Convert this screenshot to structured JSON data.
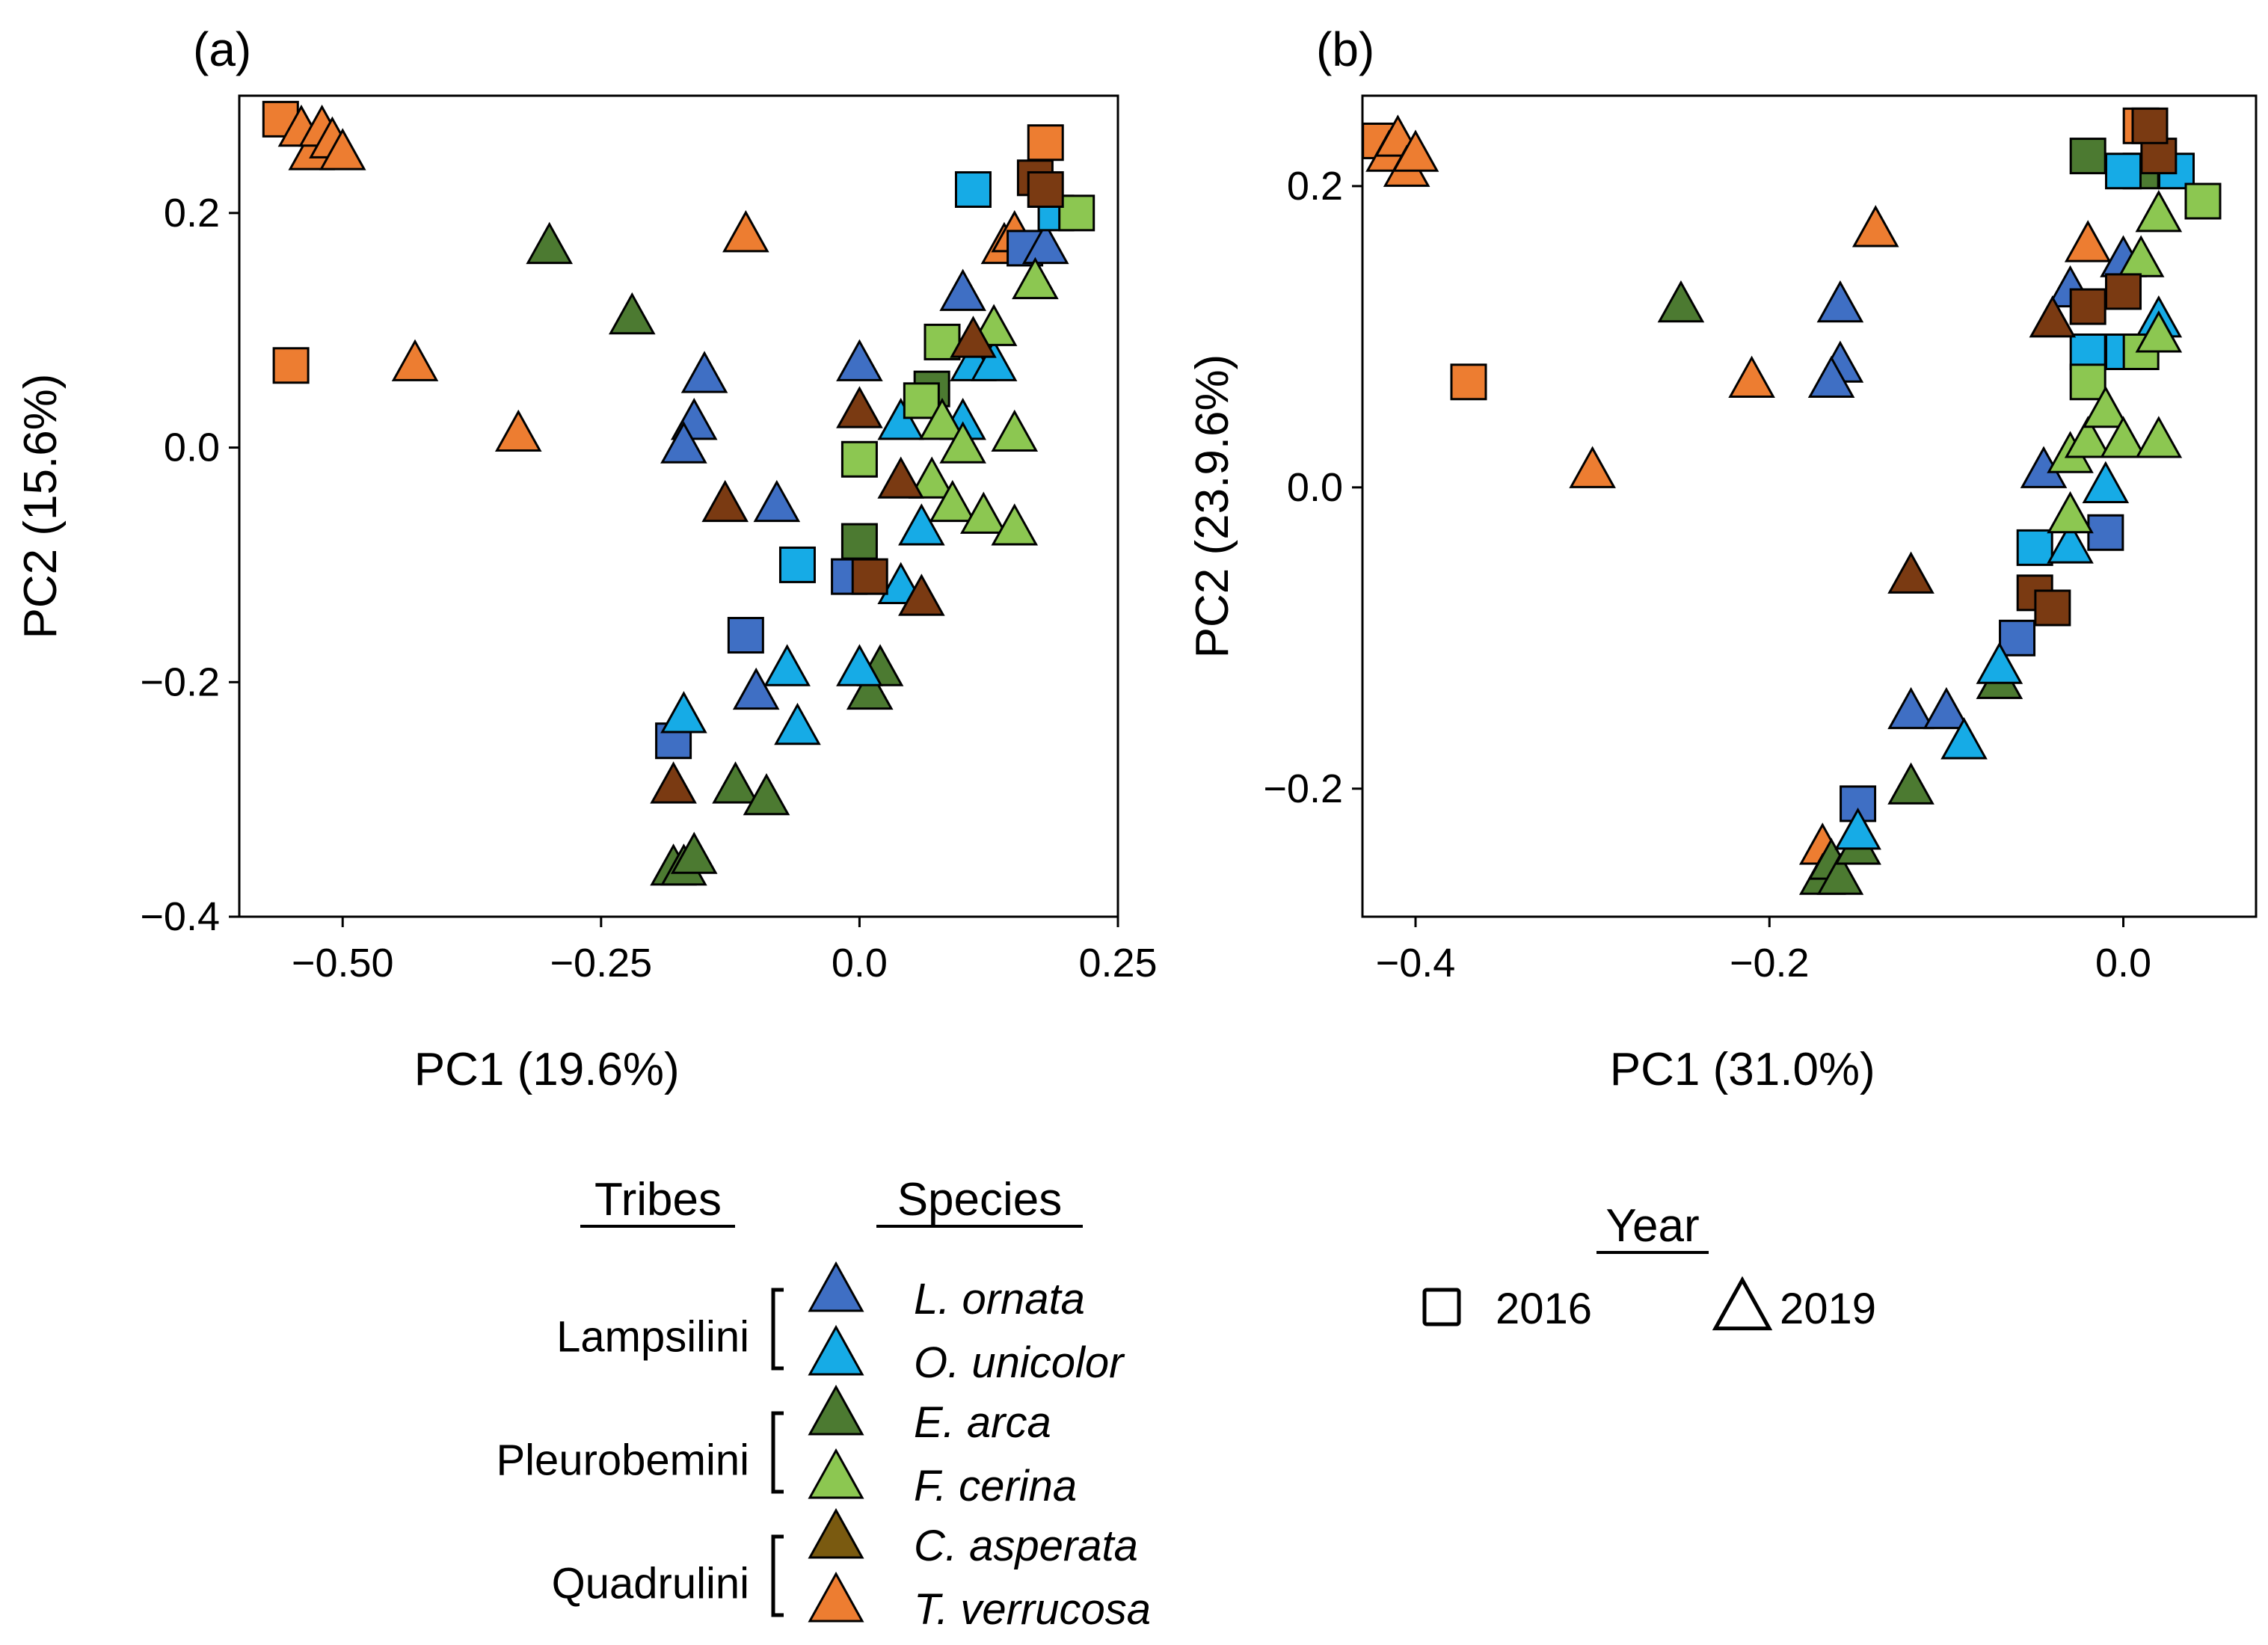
{
  "chart_data": [
    {
      "type": "scatter",
      "panel_label": "(a)",
      "xlabel": "PC1 (19.6%)",
      "ylabel": "PC2 (15.6%)",
      "xlim": [
        -0.6,
        0.25
      ],
      "ylim": [
        -0.4,
        0.3
      ],
      "xticks": [
        -0.5,
        -0.25,
        0.0,
        0.25
      ],
      "xtick_labels": [
        "−0.50",
        "−0.25",
        "0.0",
        "0.25"
      ],
      "yticks": [
        -0.4,
        -0.2,
        0.0,
        0.2
      ],
      "ytick_labels": [
        "−0.4",
        "−0.2",
        "0.0",
        "0.2"
      ],
      "points": [
        {
          "x": -0.56,
          "y": 0.28,
          "species": "T. verrucosa",
          "year": "2016"
        },
        {
          "x": -0.55,
          "y": 0.07,
          "species": "T. verrucosa",
          "year": "2016"
        },
        {
          "x": -0.54,
          "y": 0.27,
          "species": "T. verrucosa",
          "year": "2019"
        },
        {
          "x": -0.53,
          "y": 0.25,
          "species": "T. verrucosa",
          "year": "2019"
        },
        {
          "x": -0.52,
          "y": 0.27,
          "species": "T. verrucosa",
          "year": "2019"
        },
        {
          "x": -0.51,
          "y": 0.26,
          "species": "T. verrucosa",
          "year": "2019"
        },
        {
          "x": -0.5,
          "y": 0.25,
          "species": "T. verrucosa",
          "year": "2019"
        },
        {
          "x": -0.43,
          "y": 0.07,
          "species": "T. verrucosa",
          "year": "2019"
        },
        {
          "x": -0.33,
          "y": 0.01,
          "species": "T. verrucosa",
          "year": "2019"
        },
        {
          "x": -0.11,
          "y": 0.18,
          "species": "T. verrucosa",
          "year": "2019"
        },
        {
          "x": 0.14,
          "y": 0.17,
          "species": "T. verrucosa",
          "year": "2019"
        },
        {
          "x": 0.15,
          "y": 0.18,
          "species": "T. verrucosa",
          "year": "2019"
        },
        {
          "x": 0.18,
          "y": 0.26,
          "species": "T. verrucosa",
          "year": "2016"
        },
        {
          "x": -0.3,
          "y": 0.17,
          "species": "E. arca",
          "year": "2019"
        },
        {
          "x": -0.22,
          "y": 0.11,
          "species": "E. arca",
          "year": "2019"
        },
        {
          "x": -0.12,
          "y": -0.29,
          "species": "E. arca",
          "year": "2019"
        },
        {
          "x": -0.09,
          "y": -0.3,
          "species": "E. arca",
          "year": "2019"
        },
        {
          "x": -0.18,
          "y": -0.36,
          "species": "E. arca",
          "year": "2019"
        },
        {
          "x": -0.17,
          "y": -0.36,
          "species": "E. arca",
          "year": "2019"
        },
        {
          "x": -0.16,
          "y": -0.35,
          "species": "E. arca",
          "year": "2019"
        },
        {
          "x": 0.02,
          "y": -0.19,
          "species": "E. arca",
          "year": "2019"
        },
        {
          "x": 0.01,
          "y": -0.21,
          "species": "E. arca",
          "year": "2019"
        },
        {
          "x": 0.0,
          "y": -0.08,
          "species": "E. arca",
          "year": "2016"
        },
        {
          "x": 0.07,
          "y": 0.05,
          "species": "E. arca",
          "year": "2016"
        },
        {
          "x": -0.15,
          "y": 0.06,
          "species": "L. ornata",
          "year": "2019"
        },
        {
          "x": -0.16,
          "y": 0.02,
          "species": "L. ornata",
          "year": "2019"
        },
        {
          "x": -0.17,
          "y": 0.0,
          "species": "L. ornata",
          "year": "2019"
        },
        {
          "x": -0.08,
          "y": -0.05,
          "species": "L. ornata",
          "year": "2019"
        },
        {
          "x": -0.1,
          "y": -0.21,
          "species": "L. ornata",
          "year": "2019"
        },
        {
          "x": -0.11,
          "y": -0.16,
          "species": "L. ornata",
          "year": "2016"
        },
        {
          "x": -0.18,
          "y": -0.25,
          "species": "L. ornata",
          "year": "2016"
        },
        {
          "x": -0.01,
          "y": -0.11,
          "species": "L. ornata",
          "year": "2016"
        },
        {
          "x": 0.0,
          "y": 0.07,
          "species": "L. ornata",
          "year": "2019"
        },
        {
          "x": 0.1,
          "y": 0.13,
          "species": "L. ornata",
          "year": "2019"
        },
        {
          "x": 0.16,
          "y": 0.17,
          "species": "L. ornata",
          "year": "2016"
        },
        {
          "x": 0.18,
          "y": 0.17,
          "species": "L. ornata",
          "year": "2019"
        },
        {
          "x": -0.17,
          "y": -0.23,
          "species": "O. unicolor",
          "year": "2019"
        },
        {
          "x": -0.07,
          "y": -0.19,
          "species": "O. unicolor",
          "year": "2019"
        },
        {
          "x": -0.06,
          "y": -0.24,
          "species": "O. unicolor",
          "year": "2019"
        },
        {
          "x": -0.06,
          "y": -0.1,
          "species": "O. unicolor",
          "year": "2016"
        },
        {
          "x": 0.0,
          "y": -0.19,
          "species": "O. unicolor",
          "year": "2019"
        },
        {
          "x": 0.04,
          "y": 0.02,
          "species": "O. unicolor",
          "year": "2019"
        },
        {
          "x": 0.04,
          "y": -0.12,
          "species": "O. unicolor",
          "year": "2019"
        },
        {
          "x": 0.06,
          "y": -0.07,
          "species": "O. unicolor",
          "year": "2019"
        },
        {
          "x": 0.1,
          "y": 0.02,
          "species": "O. unicolor",
          "year": "2019"
        },
        {
          "x": 0.11,
          "y": 0.07,
          "species": "O. unicolor",
          "year": "2019"
        },
        {
          "x": 0.13,
          "y": 0.07,
          "species": "O. unicolor",
          "year": "2019"
        },
        {
          "x": 0.11,
          "y": 0.22,
          "species": "O. unicolor",
          "year": "2016"
        },
        {
          "x": 0.19,
          "y": 0.2,
          "species": "O. unicolor",
          "year": "2016"
        },
        {
          "x": 0.0,
          "y": -0.01,
          "species": "F. cerina",
          "year": "2016"
        },
        {
          "x": 0.06,
          "y": 0.04,
          "species": "F. cerina",
          "year": "2016"
        },
        {
          "x": 0.08,
          "y": 0.09,
          "species": "F. cerina",
          "year": "2016"
        },
        {
          "x": 0.08,
          "y": 0.02,
          "species": "F. cerina",
          "year": "2019"
        },
        {
          "x": 0.07,
          "y": -0.03,
          "species": "F. cerina",
          "year": "2019"
        },
        {
          "x": 0.09,
          "y": -0.05,
          "species": "F. cerina",
          "year": "2019"
        },
        {
          "x": 0.1,
          "y": 0.0,
          "species": "F. cerina",
          "year": "2019"
        },
        {
          "x": 0.12,
          "y": -0.06,
          "species": "F. cerina",
          "year": "2019"
        },
        {
          "x": 0.13,
          "y": 0.1,
          "species": "F. cerina",
          "year": "2019"
        },
        {
          "x": 0.15,
          "y": -0.07,
          "species": "F. cerina",
          "year": "2019"
        },
        {
          "x": 0.15,
          "y": 0.01,
          "species": "F. cerina",
          "year": "2019"
        },
        {
          "x": 0.17,
          "y": 0.14,
          "species": "F. cerina",
          "year": "2019"
        },
        {
          "x": 0.21,
          "y": 0.2,
          "species": "F. cerina",
          "year": "2016"
        },
        {
          "x": -0.13,
          "y": -0.05,
          "species": "C. asperata",
          "year": "2019"
        },
        {
          "x": -0.18,
          "y": -0.29,
          "species": "C. asperata",
          "year": "2019"
        },
        {
          "x": 0.0,
          "y": 0.03,
          "species": "C. asperata",
          "year": "2019"
        },
        {
          "x": 0.01,
          "y": -0.11,
          "species": "C. asperata",
          "year": "2016"
        },
        {
          "x": 0.04,
          "y": -0.03,
          "species": "C. asperata",
          "year": "2019"
        },
        {
          "x": 0.06,
          "y": -0.13,
          "species": "C. asperata",
          "year": "2019"
        },
        {
          "x": 0.11,
          "y": 0.09,
          "species": "C. asperata",
          "year": "2019"
        },
        {
          "x": 0.17,
          "y": 0.23,
          "species": "C. asperata",
          "year": "2016"
        },
        {
          "x": 0.18,
          "y": 0.22,
          "species": "C. asperata",
          "year": "2016"
        }
      ]
    },
    {
      "type": "scatter",
      "panel_label": "(b)",
      "xlabel": "PC1 (31.0%)",
      "ylabel": "PC2 (23.9.6%)",
      "xlim": [
        -0.43,
        0.075
      ],
      "ylim": [
        -0.285,
        0.26
      ],
      "xticks": [
        -0.4,
        -0.2,
        0.0
      ],
      "xtick_labels": [
        "−0.4",
        "−0.2",
        "0.0"
      ],
      "yticks": [
        -0.2,
        0.0,
        0.2
      ],
      "ytick_labels": [
        "−0.2",
        "0.0",
        "0.2"
      ],
      "points": [
        {
          "x": -0.42,
          "y": 0.23,
          "species": "T. verrucosa",
          "year": "2016"
        },
        {
          "x": -0.415,
          "y": 0.22,
          "species": "T. verrucosa",
          "year": "2019"
        },
        {
          "x": -0.41,
          "y": 0.23,
          "species": "T. verrucosa",
          "year": "2019"
        },
        {
          "x": -0.405,
          "y": 0.21,
          "species": "T. verrucosa",
          "year": "2019"
        },
        {
          "x": -0.4,
          "y": 0.22,
          "species": "T. verrucosa",
          "year": "2019"
        },
        {
          "x": -0.37,
          "y": 0.07,
          "species": "T. verrucosa",
          "year": "2016"
        },
        {
          "x": -0.3,
          "y": 0.01,
          "species": "T. verrucosa",
          "year": "2019"
        },
        {
          "x": -0.21,
          "y": 0.07,
          "species": "T. verrucosa",
          "year": "2019"
        },
        {
          "x": -0.14,
          "y": 0.17,
          "species": "T. verrucosa",
          "year": "2019"
        },
        {
          "x": -0.02,
          "y": 0.16,
          "species": "T. verrucosa",
          "year": "2019"
        },
        {
          "x": -0.17,
          "y": -0.24,
          "species": "T. verrucosa",
          "year": "2019"
        },
        {
          "x": 0.01,
          "y": 0.24,
          "species": "T. verrucosa",
          "year": "2016"
        },
        {
          "x": -0.25,
          "y": 0.12,
          "species": "E. arca",
          "year": "2019"
        },
        {
          "x": -0.12,
          "y": -0.2,
          "species": "E. arca",
          "year": "2019"
        },
        {
          "x": -0.17,
          "y": -0.26,
          "species": "E. arca",
          "year": "2019"
        },
        {
          "x": -0.165,
          "y": -0.25,
          "species": "E. arca",
          "year": "2019"
        },
        {
          "x": -0.16,
          "y": -0.26,
          "species": "E. arca",
          "year": "2019"
        },
        {
          "x": -0.15,
          "y": -0.24,
          "species": "E. arca",
          "year": "2019"
        },
        {
          "x": -0.07,
          "y": -0.13,
          "species": "E. arca",
          "year": "2019"
        },
        {
          "x": -0.02,
          "y": 0.22,
          "species": "E. arca",
          "year": "2016"
        },
        {
          "x": 0.01,
          "y": 0.21,
          "species": "E. arca",
          "year": "2016"
        },
        {
          "x": -0.16,
          "y": 0.12,
          "species": "L. ornata",
          "year": "2019"
        },
        {
          "x": -0.16,
          "y": 0.08,
          "species": "L. ornata",
          "year": "2019"
        },
        {
          "x": -0.165,
          "y": 0.07,
          "species": "L. ornata",
          "year": "2019"
        },
        {
          "x": -0.12,
          "y": -0.15,
          "species": "L. ornata",
          "year": "2019"
        },
        {
          "x": -0.1,
          "y": -0.15,
          "species": "L. ornata",
          "year": "2019"
        },
        {
          "x": -0.06,
          "y": -0.1,
          "species": "L. ornata",
          "year": "2016"
        },
        {
          "x": -0.15,
          "y": -0.21,
          "species": "L. ornata",
          "year": "2016"
        },
        {
          "x": -0.045,
          "y": 0.01,
          "species": "L. ornata",
          "year": "2019"
        },
        {
          "x": -0.03,
          "y": 0.13,
          "species": "L. ornata",
          "year": "2019"
        },
        {
          "x": 0.0,
          "y": 0.15,
          "species": "L. ornata",
          "year": "2019"
        },
        {
          "x": -0.01,
          "y": -0.03,
          "species": "L. ornata",
          "year": "2016"
        },
        {
          "x": -0.15,
          "y": -0.23,
          "species": "O. unicolor",
          "year": "2019"
        },
        {
          "x": -0.09,
          "y": -0.17,
          "species": "O. unicolor",
          "year": "2019"
        },
        {
          "x": -0.07,
          "y": -0.12,
          "species": "O. unicolor",
          "year": "2019"
        },
        {
          "x": -0.05,
          "y": -0.04,
          "species": "O. unicolor",
          "year": "2016"
        },
        {
          "x": -0.03,
          "y": -0.04,
          "species": "O. unicolor",
          "year": "2019"
        },
        {
          "x": -0.02,
          "y": 0.09,
          "species": "O. unicolor",
          "year": "2016"
        },
        {
          "x": 0.0,
          "y": 0.09,
          "species": "O. unicolor",
          "year": "2016"
        },
        {
          "x": 0.0,
          "y": 0.21,
          "species": "O. unicolor",
          "year": "2016"
        },
        {
          "x": 0.03,
          "y": 0.21,
          "species": "O. unicolor",
          "year": "2016"
        },
        {
          "x": 0.02,
          "y": 0.11,
          "species": "O. unicolor",
          "year": "2019"
        },
        {
          "x": -0.01,
          "y": 0.0,
          "species": "O. unicolor",
          "year": "2019"
        },
        {
          "x": -0.03,
          "y": -0.02,
          "species": "F. cerina",
          "year": "2019"
        },
        {
          "x": -0.03,
          "y": 0.02,
          "species": "F. cerina",
          "year": "2019"
        },
        {
          "x": -0.02,
          "y": 0.07,
          "species": "F. cerina",
          "year": "2016"
        },
        {
          "x": -0.02,
          "y": 0.03,
          "species": "F. cerina",
          "year": "2019"
        },
        {
          "x": -0.01,
          "y": 0.05,
          "species": "F. cerina",
          "year": "2019"
        },
        {
          "x": 0.0,
          "y": 0.03,
          "species": "F. cerina",
          "year": "2019"
        },
        {
          "x": 0.01,
          "y": 0.09,
          "species": "F. cerina",
          "year": "2016"
        },
        {
          "x": 0.01,
          "y": 0.15,
          "species": "F. cerina",
          "year": "2019"
        },
        {
          "x": 0.02,
          "y": 0.03,
          "species": "F. cerina",
          "year": "2019"
        },
        {
          "x": 0.02,
          "y": 0.18,
          "species": "F. cerina",
          "year": "2019"
        },
        {
          "x": 0.045,
          "y": 0.19,
          "species": "F. cerina",
          "year": "2016"
        },
        {
          "x": 0.02,
          "y": 0.1,
          "species": "F. cerina",
          "year": "2019"
        },
        {
          "x": -0.12,
          "y": -0.06,
          "species": "C. asperata",
          "year": "2019"
        },
        {
          "x": -0.05,
          "y": -0.07,
          "species": "C. asperata",
          "year": "2016"
        },
        {
          "x": -0.04,
          "y": -0.08,
          "species": "C. asperata",
          "year": "2016"
        },
        {
          "x": -0.04,
          "y": 0.11,
          "species": "C. asperata",
          "year": "2019"
        },
        {
          "x": -0.02,
          "y": 0.12,
          "species": "C. asperata",
          "year": "2016"
        },
        {
          "x": 0.0,
          "y": 0.13,
          "species": "C. asperata",
          "year": "2016"
        },
        {
          "x": 0.02,
          "y": 0.22,
          "species": "C. asperata",
          "year": "2016"
        },
        {
          "x": 0.015,
          "y": 0.24,
          "species": "C. asperata",
          "year": "2016"
        }
      ]
    }
  ],
  "legend": {
    "tribes_header": "Tribes",
    "species_header": "Species",
    "groups": [
      {
        "tribe": "Lampsilini",
        "species": [
          "L. ornata",
          "O. unicolor"
        ]
      },
      {
        "tribe": "Pleurobemini",
        "species": [
          "E. arca",
          "F. cerina"
        ]
      },
      {
        "tribe": "Quadrulini",
        "species": [
          "C. asperata",
          "T. verrucosa"
        ]
      }
    ],
    "species_colors": {
      "L. ornata": "#3F6FC4",
      "O. unicolor": "#16ABE6",
      "E. arca": "#4C7A31",
      "F. cerina": "#8CC751",
      "C. asperata": "#7A3A12",
      "T. verrucosa": "#ED7D31"
    },
    "legend_swatch_colors": {
      "C. asperata": "#7A5A10"
    },
    "year_header": "Year",
    "years": [
      {
        "label": "2016",
        "shape": "square"
      },
      {
        "label": "2019",
        "shape": "triangle"
      }
    ]
  }
}
